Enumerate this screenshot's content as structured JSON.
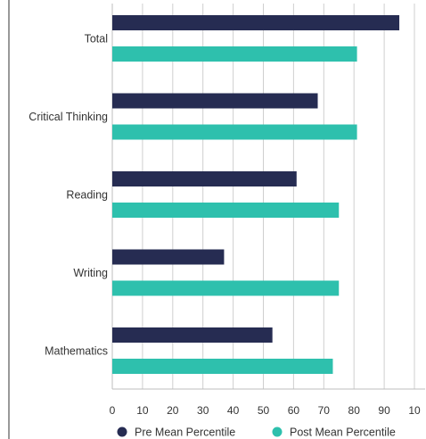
{
  "chart_data": {
    "type": "bar",
    "orientation": "horizontal",
    "title": "",
    "xlabel": "",
    "ylabel": "",
    "categories": [
      "Total",
      "Critical Thinking",
      "Reading",
      "Writing",
      "Mathematics"
    ],
    "series": [
      {
        "name": "Pre Mean Percentile",
        "color": "#262c52",
        "values": [
          95,
          68,
          61,
          37,
          53
        ]
      },
      {
        "name": "Post Mean Percentile",
        "color": "#2ec0ad",
        "values": [
          81,
          81,
          75,
          75,
          73
        ]
      }
    ],
    "xlim": [
      0,
      100
    ],
    "x_ticks": [
      "0",
      "10",
      "20",
      "30",
      "40",
      "50",
      "60",
      "70",
      "80",
      "90",
      "10"
    ],
    "grid": "vertical",
    "legend_position": "bottom"
  }
}
